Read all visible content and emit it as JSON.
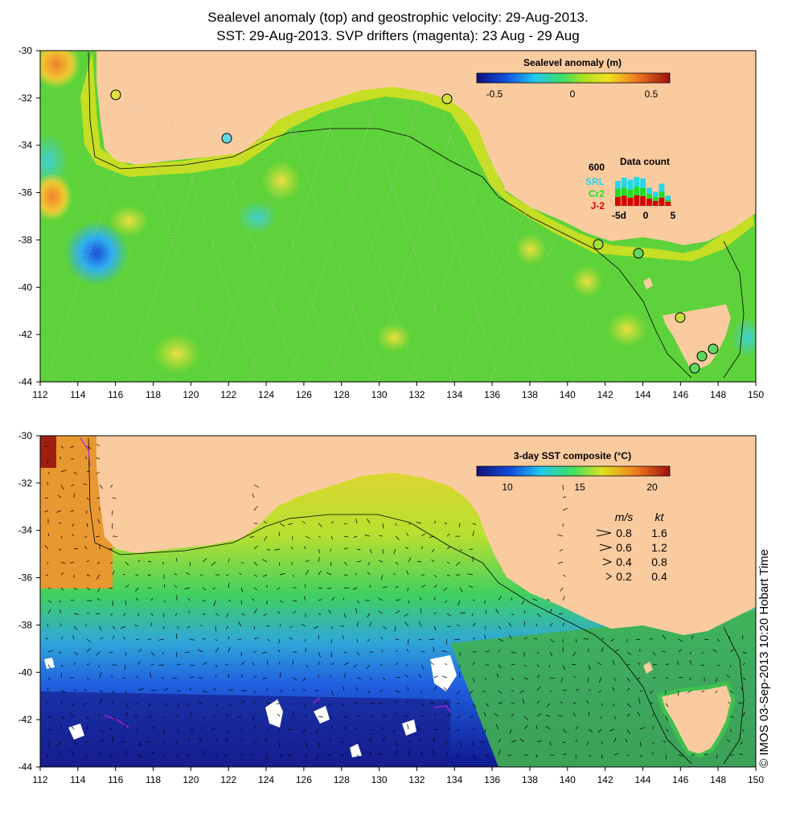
{
  "title_line1": "Sealevel anomaly (top) and geostrophic velocity: 29-Aug-2013.",
  "title_line2": "SST: 29-Aug-2013. SVP drifters (magenta): 23 Aug - 29 Aug",
  "credit": "© IMOS 03-Sep-2013 10:20 Hobart Time",
  "colors": {
    "land": "#fbcba0",
    "ocean_top": "#5ed23a",
    "ocean_bottom_warm": "#f0c830",
    "ocean_bottom_cool": "#1f5ae0",
    "magenta": "#c020e0",
    "arrow": "#000000"
  },
  "top_map": {
    "colorbar": {
      "title": "Sealevel anomaly (m)",
      "ticks": [
        "-0.5",
        "0",
        "0.5"
      ]
    },
    "data_count": {
      "title": "Data count",
      "ymax_label": "600",
      "satellites": [
        {
          "name": "SRL",
          "color": "#22d8e8"
        },
        {
          "name": "Cr2",
          "color": "#22dd22"
        },
        {
          "name": "J-2",
          "color": "#dd0000"
        }
      ],
      "xticks": [
        "-5d",
        "0",
        "5"
      ],
      "bars_srl": [
        0.62,
        0.7,
        0.65,
        0.72,
        0.68,
        0.45,
        0.35,
        0.55,
        0.25
      ],
      "bars_cr2": [
        0.42,
        0.45,
        0.4,
        0.48,
        0.44,
        0.3,
        0.22,
        0.35,
        0.15
      ],
      "bars_j2": [
        0.22,
        0.25,
        0.2,
        0.26,
        0.24,
        0.18,
        0.12,
        0.2,
        0.1
      ]
    }
  },
  "bottom_map": {
    "colorbar": {
      "title": "3-day SST composite (°C)",
      "ticks": [
        "10",
        "15",
        "20"
      ]
    },
    "speed_legend": {
      "header_ms": "m/s",
      "header_kt": "kt",
      "rows": [
        {
          "ms": "0.8",
          "kt": "1.6"
        },
        {
          "ms": "0.6",
          "kt": "1.2"
        },
        {
          "ms": "0.4",
          "kt": "0.8"
        },
        {
          "ms": "0.2",
          "kt": "0.4"
        }
      ]
    }
  },
  "axes": {
    "x_ticks": [
      "112",
      "114",
      "116",
      "118",
      "120",
      "122",
      "124",
      "126",
      "128",
      "130",
      "132",
      "134",
      "136",
      "138",
      "140",
      "142",
      "144",
      "146",
      "148",
      "150"
    ],
    "y_ticks": [
      "-30",
      "-32",
      "-34",
      "-36",
      "-38",
      "-40",
      "-42",
      "-44"
    ]
  }
}
